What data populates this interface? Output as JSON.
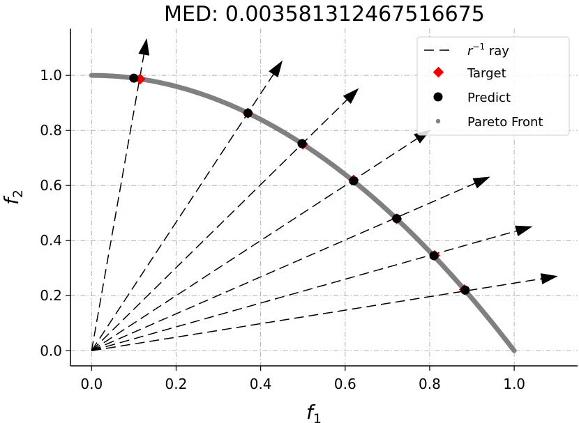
{
  "chart_data": {
    "type": "scatter",
    "title": "MED: 0.0035813124675166​75",
    "xlabel": "f",
    "xlabel_sub": "1",
    "ylabel": "f",
    "ylabel_sub": "2",
    "xlim": [
      -0.05,
      1.15
    ],
    "ylim": [
      -0.055,
      1.17
    ],
    "xticks": [
      0.0,
      0.2,
      0.4,
      0.6,
      0.8,
      1.0
    ],
    "yticks": [
      0.0,
      0.2,
      0.4,
      0.6,
      0.8,
      1.0
    ],
    "xtick_labels": [
      "0.0",
      "0.2",
      "0.4",
      "0.6",
      "0.8",
      "1.0"
    ],
    "ytick_labels": [
      "0.0",
      "0.2",
      "0.4",
      "0.6",
      "0.8",
      "1.0"
    ],
    "grid": true,
    "legend_position": "top-right",
    "legend": {
      "ray": {
        "prefix": "r",
        "sup": "−1",
        "suffix": " ray"
      },
      "target": "Target",
      "predict": "Predict",
      "pareto": "Pareto Front"
    },
    "pareto_front": {
      "curve": "f2 = 1 - f1^2",
      "x_range": [
        0,
        1
      ],
      "color": "#808080"
    },
    "rays": [
      {
        "end": [
          0.13,
          1.13
        ]
      },
      {
        "end": [
          0.45,
          1.05
        ]
      },
      {
        "end": [
          0.63,
          0.95
        ]
      },
      {
        "end": [
          0.8,
          0.8
        ]
      },
      {
        "end": [
          0.94,
          0.63
        ]
      },
      {
        "end": [
          1.04,
          0.45
        ]
      },
      {
        "end": [
          1.1,
          0.27
        ]
      }
    ],
    "targets": [
      {
        "x": 0.115,
        "y": 0.987
      },
      {
        "x": 0.37,
        "y": 0.863
      },
      {
        "x": 0.5,
        "y": 0.75
      },
      {
        "x": 0.62,
        "y": 0.62
      },
      {
        "x": 0.722,
        "y": 0.479
      },
      {
        "x": 0.812,
        "y": 0.346
      },
      {
        "x": 0.882,
        "y": 0.222
      }
    ],
    "predictions": [
      {
        "x": 0.1,
        "y": 0.99
      },
      {
        "x": 0.37,
        "y": 0.863
      },
      {
        "x": 0.498,
        "y": 0.752
      },
      {
        "x": 0.62,
        "y": 0.617
      },
      {
        "x": 0.722,
        "y": 0.48
      },
      {
        "x": 0.81,
        "y": 0.345
      },
      {
        "x": 0.884,
        "y": 0.22
      }
    ],
    "colors": {
      "target": "#ee0000",
      "predict": "#000000",
      "pareto": "#808080",
      "grid": "#b0b0b0"
    }
  }
}
